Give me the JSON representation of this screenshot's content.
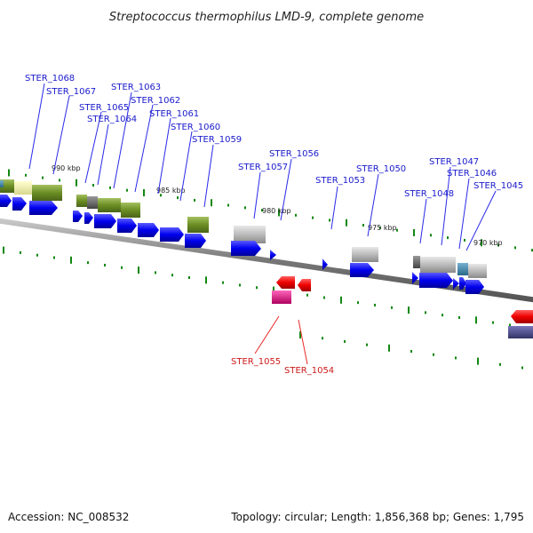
{
  "title": "Streptococcus thermophilus LMD-9, complete genome",
  "footer": {
    "accession": "Accession: NC_008532",
    "topology": "Topology: circular; Length: 1,856,368 bp; Genes: 1,795"
  },
  "kbp_labels": [
    "990 kbp",
    "985 kbp",
    "980 kbp",
    "975 kbp",
    "970 kbp"
  ],
  "genes": [
    {
      "id": "STER_1068",
      "strand": "+"
    },
    {
      "id": "STER_1067",
      "strand": "+"
    },
    {
      "id": "STER_1065",
      "strand": "+"
    },
    {
      "id": "STER_1064",
      "strand": "+"
    },
    {
      "id": "STER_1063",
      "strand": "+"
    },
    {
      "id": "STER_1062",
      "strand": "+"
    },
    {
      "id": "STER_1061",
      "strand": "+"
    },
    {
      "id": "STER_1060",
      "strand": "+"
    },
    {
      "id": "STER_1059",
      "strand": "+"
    },
    {
      "id": "STER_1057",
      "strand": "+"
    },
    {
      "id": "STER_1056",
      "strand": "+"
    },
    {
      "id": "STER_1053",
      "strand": "+"
    },
    {
      "id": "STER_1050",
      "strand": "+"
    },
    {
      "id": "STER_1048",
      "strand": "+"
    },
    {
      "id": "STER_1047",
      "strand": "+"
    },
    {
      "id": "STER_1046",
      "strand": "+"
    },
    {
      "id": "STER_1045",
      "strand": "+"
    },
    {
      "id": "STER_1055",
      "strand": "-"
    },
    {
      "id": "STER_1054",
      "strand": "-"
    }
  ],
  "colors": {
    "forward_cds": "#0000ee",
    "reverse_cds": "#ee0000",
    "backbone": "#888888",
    "tick": "#118811",
    "cog_olive": "#6b8e23",
    "cog_pale": "#eeeeaa",
    "cog_grey": "#bbbbbb",
    "cog_dark": "#666666",
    "cog_teal": "#4488aa",
    "cog_magenta": "#ee1188",
    "cog_navy": "#444488"
  }
}
